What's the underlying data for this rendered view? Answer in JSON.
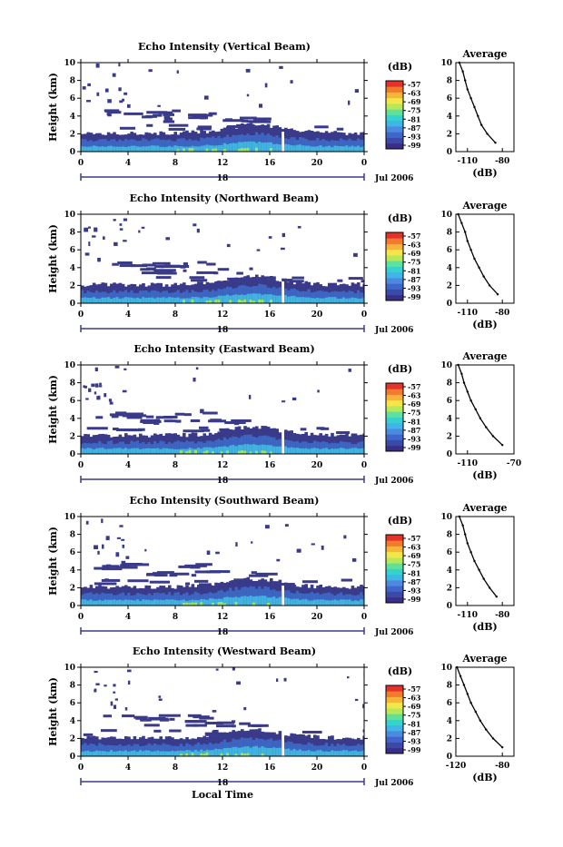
{
  "footer": {
    "xlabel": "Local Time"
  },
  "colors": {
    "colorbar": [
      "#3a2f86",
      "#3b4aa8",
      "#3f66c8",
      "#4c8ae0",
      "#3fb6e6",
      "#35d2d0",
      "#5ee29b",
      "#b8e85a",
      "#f2e64a",
      "#f7b43b",
      "#f27a2e",
      "#e2332a"
    ],
    "echo_dark": "#3a3a8a",
    "echo_mid": "#3d66c2",
    "echo_light": "#41b3df",
    "echo_green": "#9be36b"
  },
  "chart_data": [
    {
      "type": "heatmap",
      "title": "Echo Intensity (Vertical Beam)",
      "ylabel": "Height (km)",
      "xlim": [
        0,
        24
      ],
      "ylim": [
        0,
        10
      ],
      "x_ticks": [
        "0",
        "4",
        "8",
        "12",
        "16",
        "20",
        "0"
      ],
      "y_ticks": [
        "0",
        "2",
        "4",
        "6",
        "8",
        "10"
      ],
      "day_label": "18",
      "date_label": "Jul 2006",
      "colorbar": {
        "unit": "(dB)",
        "ticks": [
          "-57",
          "-63",
          "-69",
          "-75",
          "-81",
          "-87",
          "-93",
          "-99"
        ]
      },
      "profile": {
        "title": "Average",
        "xlabel": "(dB)",
        "xlim": [
          -120,
          -70
        ],
        "x_ticks": [
          "-110",
          "-80"
        ],
        "y_ticks": [
          "0",
          "2",
          "4",
          "6",
          "8",
          "10"
        ],
        "x": [
          -117,
          -114,
          -112,
          -110,
          -107,
          -104,
          -101,
          -98,
          -93,
          -86
        ],
        "y": [
          10,
          9,
          8,
          7,
          6,
          5,
          4,
          3,
          2,
          1
        ]
      }
    },
    {
      "type": "heatmap",
      "title": "Echo Intensity (Northward Beam)",
      "ylabel": "Height (km)",
      "xlim": [
        0,
        24
      ],
      "ylim": [
        0,
        10
      ],
      "x_ticks": [
        "0",
        "4",
        "8",
        "12",
        "16",
        "20",
        "0"
      ],
      "y_ticks": [
        "0",
        "2",
        "4",
        "6",
        "8",
        "10"
      ],
      "day_label": "18",
      "date_label": "Jul 2006",
      "colorbar": {
        "unit": "(dB)",
        "ticks": [
          "-57",
          "-63",
          "-69",
          "-75",
          "-81",
          "-87",
          "-93",
          "-99"
        ]
      },
      "profile": {
        "title": "Average",
        "xlabel": "(dB)",
        "xlim": [
          -120,
          -70
        ],
        "x_ticks": [
          "-110",
          "-80"
        ],
        "y_ticks": [
          "0",
          "2",
          "4",
          "6",
          "8",
          "10"
        ],
        "x": [
          -118,
          -115,
          -112,
          -110,
          -107,
          -104,
          -100,
          -96,
          -91,
          -84
        ],
        "y": [
          10,
          9,
          8,
          7,
          6,
          5,
          4,
          3,
          2,
          1
        ]
      }
    },
    {
      "type": "heatmap",
      "title": "Echo Intensity (Eastward Beam)",
      "ylabel": "Height (km)",
      "xlim": [
        0,
        24
      ],
      "ylim": [
        0,
        10
      ],
      "x_ticks": [
        "0",
        "4",
        "8",
        "12",
        "16",
        "20",
        "0"
      ],
      "y_ticks": [
        "0",
        "2",
        "4",
        "6",
        "8",
        "10"
      ],
      "day_label": "18",
      "date_label": "Jul 2006",
      "colorbar": {
        "unit": "(dB)",
        "ticks": [
          "-57",
          "-63",
          "-69",
          "-75",
          "-81",
          "-87",
          "-93",
          "-99"
        ]
      },
      "profile": {
        "title": "Average",
        "xlabel": "(dB)",
        "xlim": [
          -120,
          -70
        ],
        "x_ticks": [
          "-110",
          "-70"
        ],
        "y_ticks": [
          "0",
          "2",
          "4",
          "6",
          "8",
          "10"
        ],
        "x": [
          -118,
          -115,
          -113,
          -110,
          -107,
          -103,
          -99,
          -94,
          -88,
          -80
        ],
        "y": [
          10,
          9,
          8,
          7,
          6,
          5,
          4,
          3,
          2,
          1
        ]
      }
    },
    {
      "type": "heatmap",
      "title": "Echo Intensity (Southward Beam)",
      "ylabel": "Height (km)",
      "xlim": [
        0,
        24
      ],
      "ylim": [
        0,
        10
      ],
      "x_ticks": [
        "0",
        "4",
        "8",
        "12",
        "16",
        "20",
        "0"
      ],
      "y_ticks": [
        "0",
        "2",
        "4",
        "6",
        "8",
        "10"
      ],
      "day_label": "18",
      "date_label": "Jul 2006",
      "colorbar": {
        "unit": "(dB)",
        "ticks": [
          "-57",
          "-63",
          "-69",
          "-75",
          "-81",
          "-87",
          "-93",
          "-99"
        ]
      },
      "profile": {
        "title": "Average",
        "xlabel": "(dB)",
        "xlim": [
          -120,
          -70
        ],
        "x_ticks": [
          "-110",
          "-80"
        ],
        "y_ticks": [
          "0",
          "2",
          "4",
          "6",
          "8",
          "10"
        ],
        "x": [
          -117,
          -114,
          -112,
          -110,
          -107,
          -104,
          -100,
          -96,
          -91,
          -85
        ],
        "y": [
          10,
          9,
          8,
          7,
          6,
          5,
          4,
          3,
          2,
          1
        ]
      }
    },
    {
      "type": "heatmap",
      "title": "Echo Intensity (Westward Beam)",
      "ylabel": "Height (km)",
      "xlim": [
        0,
        24
      ],
      "ylim": [
        0,
        10
      ],
      "x_ticks": [
        "0",
        "4",
        "8",
        "12",
        "16",
        "20",
        "0"
      ],
      "y_ticks": [
        "0",
        "2",
        "4",
        "6",
        "8",
        "10"
      ],
      "day_label": "18",
      "date_label": "Jul 2006",
      "colorbar": {
        "unit": "(dB)",
        "ticks": [
          "-57",
          "-63",
          "-69",
          "-75",
          "-81",
          "-87",
          "-93",
          "-99"
        ]
      },
      "profile": {
        "title": "Average",
        "xlabel": "(dB)",
        "xlim": [
          -120,
          -70
        ],
        "x_ticks": [
          "-120",
          "-80"
        ],
        "y_ticks": [
          "0",
          "2",
          "4",
          "6",
          "8",
          "10"
        ],
        "x": [
          -119,
          -116,
          -113,
          -110,
          -107,
          -103,
          -99,
          -94,
          -88,
          -80
        ],
        "y": [
          10,
          9,
          8,
          7,
          6,
          5,
          4,
          3,
          2,
          1
        ]
      }
    }
  ]
}
